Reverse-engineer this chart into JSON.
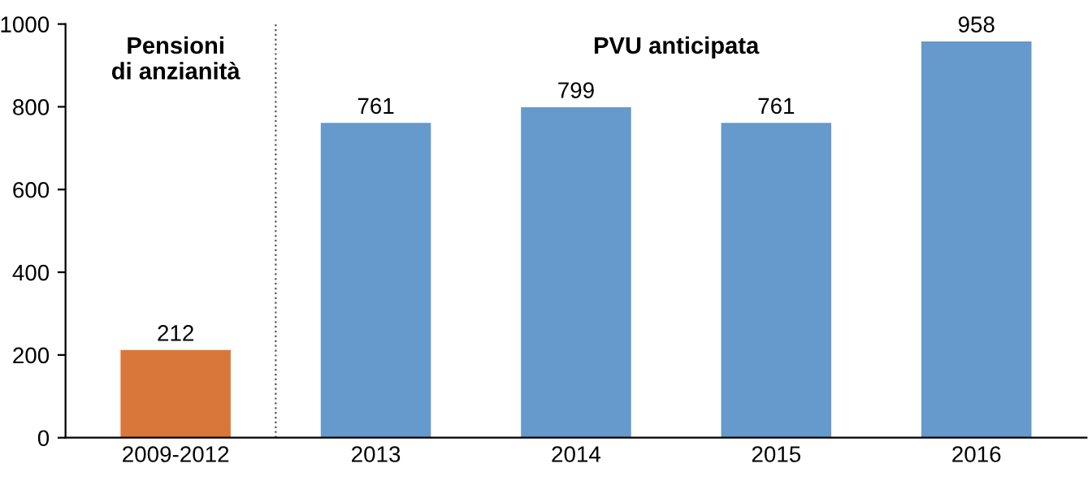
{
  "chart_data": {
    "type": "bar",
    "categories": [
      "2009-2012",
      "2013",
      "2014",
      "2015",
      "2016"
    ],
    "values": [
      212,
      761,
      799,
      761,
      958
    ],
    "colors": [
      "#d9773a",
      "#6699cc",
      "#6699cc",
      "#6699cc",
      "#6699cc"
    ],
    "data_labels": true,
    "ylim": [
      0,
      1000
    ],
    "yticks": [
      0,
      200,
      400,
      600,
      800,
      1000
    ],
    "grid": false,
    "annotations": [
      "Pensioni\ndi anzianità",
      "PVU anticipata"
    ]
  }
}
